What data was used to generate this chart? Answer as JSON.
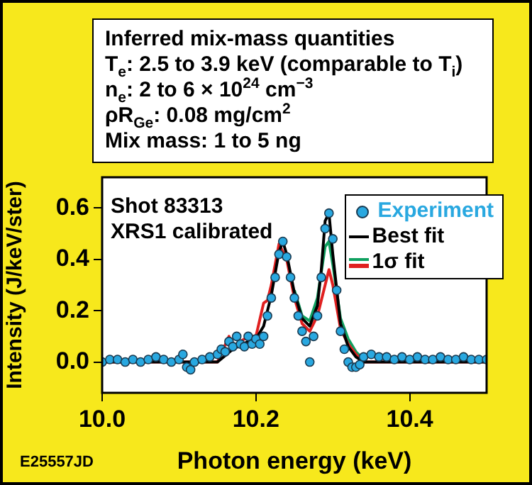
{
  "chart_data": {
    "type": "line",
    "title": "Inferred mix-mass quantities",
    "xlabel": "Photon energy (keV)",
    "ylabel": "Intensity (J/keV/ster)",
    "annotations": [
      "T$_{e}$: 2.5 to 3.9 keV (comparable to T$_{i}$)",
      "n$_{e}$: 2 to 6 × 10$^{24}$ cm$^{−3}$",
      "ρR$_{Ge}$: 0.08 mg/cm$^{2}$",
      "Mix mass: 1 to 5 ng",
      "Shot 83313",
      "XRS1 calibrated",
      "E25557JD"
    ],
    "xlim": [
      10.0,
      10.5
    ],
    "xticks": [
      {
        "value": 10.0,
        "label": "10.0"
      },
      {
        "value": 10.2,
        "label": "10.2"
      },
      {
        "value": 10.4,
        "label": "10.4"
      }
    ],
    "ylim": [
      -0.12,
      0.72
    ],
    "yticks": [
      {
        "value": 0,
        "label": "0.0"
      },
      0.2,
      0.4,
      0.6
    ],
    "grid": false,
    "legend": "top right",
    "series": [
      {
        "name": "Experiment",
        "type": "scatter",
        "marker": "circle",
        "color": "#29a8e0",
        "x": [
          10.0,
          10.01,
          10.02,
          10.03,
          10.04,
          10.05,
          10.06,
          10.07,
          10.08,
          10.09,
          10.1,
          10.105,
          10.11,
          10.115,
          10.12,
          10.13,
          10.14,
          10.15,
          10.155,
          10.16,
          10.165,
          10.17,
          10.175,
          10.18,
          10.185,
          10.19,
          10.195,
          10.2,
          10.205,
          10.21,
          10.215,
          10.22,
          10.225,
          10.23,
          10.235,
          10.24,
          10.245,
          10.25,
          10.255,
          10.26,
          10.265,
          10.27,
          10.275,
          10.28,
          10.285,
          10.29,
          10.295,
          10.3,
          10.305,
          10.31,
          10.315,
          10.32,
          10.325,
          10.33,
          10.335,
          10.34,
          10.35,
          10.36,
          10.37,
          10.38,
          10.39,
          10.4,
          10.41,
          10.42,
          10.43,
          10.44,
          10.45,
          10.46,
          10.47,
          10.48,
          10.49,
          10.5
        ],
        "values": [
          0.0,
          0.01,
          0.01,
          0.0,
          0.01,
          0.0,
          0.01,
          0.02,
          0.01,
          0.0,
          0.01,
          0.03,
          -0.02,
          -0.03,
          0.0,
          0.01,
          0.02,
          0.03,
          0.05,
          0.04,
          0.08,
          0.06,
          0.1,
          0.07,
          0.06,
          0.1,
          0.07,
          0.09,
          0.07,
          0.1,
          0.18,
          0.25,
          0.33,
          0.42,
          0.47,
          0.41,
          0.33,
          0.25,
          0.18,
          0.12,
          0.08,
          0.0,
          0.1,
          0.18,
          0.33,
          0.52,
          0.58,
          0.48,
          0.28,
          0.12,
          0.05,
          0.0,
          -0.02,
          -0.02,
          -0.01,
          0.02,
          0.03,
          0.02,
          0.02,
          0.01,
          0.02,
          0.01,
          0.02,
          0.01,
          0.01,
          0.02,
          0.01,
          0.01,
          0.02,
          0.01,
          0.01,
          0.01
        ]
      },
      {
        "name": "Best fit",
        "line_style": "solid",
        "color": "#000000",
        "x": [
          10.0,
          10.15,
          10.17,
          10.19,
          10.2,
          10.21,
          10.22,
          10.23,
          10.235,
          10.24,
          10.25,
          10.26,
          10.27,
          10.28,
          10.285,
          10.29,
          10.295,
          10.3,
          10.31,
          10.32,
          10.33,
          10.34,
          10.5
        ],
        "values": [
          0,
          0,
          0.05,
          0.08,
          0.09,
          0.14,
          0.26,
          0.43,
          0.47,
          0.42,
          0.27,
          0.17,
          0.14,
          0.22,
          0.36,
          0.55,
          0.58,
          0.42,
          0.15,
          0.06,
          0.02,
          0,
          0
        ]
      },
      {
        "name": "1σ fit",
        "line_style": "solid",
        "color": "#e02020",
        "x": [
          10.0,
          10.15,
          10.165,
          10.17,
          10.19,
          10.2,
          10.21,
          10.215,
          10.22,
          10.23,
          10.24,
          10.25,
          10.26,
          10.27,
          10.28,
          10.29,
          10.295,
          10.3,
          10.31,
          10.32,
          10.33,
          10.34,
          10.5
        ],
        "values": [
          0,
          0,
          0.1,
          0.06,
          0.1,
          0.1,
          0.23,
          0.24,
          0.3,
          0.46,
          0.4,
          0.25,
          0.15,
          0.12,
          0.18,
          0.3,
          0.36,
          0.3,
          0.13,
          0.07,
          0.03,
          0,
          0
        ]
      },
      {
        "line_style": "solid",
        "color": "#10a060",
        "x": [
          10.25,
          10.26,
          10.27,
          10.28,
          10.29,
          10.295,
          10.3,
          10.31,
          10.32,
          10.33,
          10.34
        ],
        "values": [
          0.28,
          0.18,
          0.16,
          0.25,
          0.45,
          0.47,
          0.38,
          0.17,
          0.09,
          0.04,
          0.01
        ]
      }
    ]
  }
}
